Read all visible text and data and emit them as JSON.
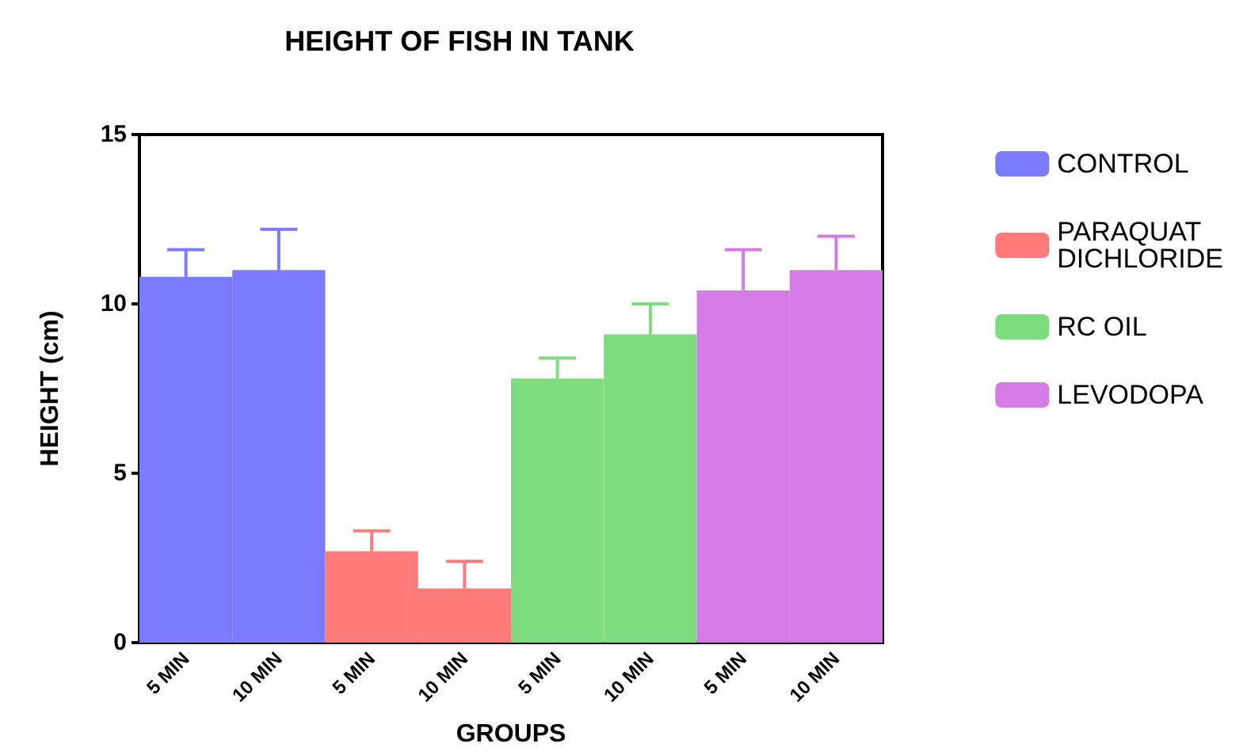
{
  "chart_data": {
    "type": "bar",
    "title": "HEIGHT OF FISH IN TANK",
    "xlabel": "GROUPS",
    "ylabel": "HEIGHT (cm)",
    "categories": [
      "5 MIN",
      "10 MIN",
      "5 MIN",
      "10 MIN",
      "5 MIN",
      "10 MIN",
      "5 MIN",
      "10 MIN"
    ],
    "series": [
      {
        "name": "CONTROL",
        "color": "#7b7bff",
        "values": [
          10.8,
          11.0,
          null,
          null,
          null,
          null,
          null,
          null
        ],
        "errors": [
          0.8,
          1.2,
          null,
          null,
          null,
          null,
          null,
          null
        ]
      },
      {
        "name": "PARAQUAT DICHLORIDE",
        "color": "#ff7b7b",
        "values": [
          null,
          null,
          2.7,
          1.6,
          null,
          null,
          null,
          null
        ],
        "errors": [
          null,
          null,
          0.6,
          0.8,
          null,
          null,
          null,
          null
        ]
      },
      {
        "name": "RC OIL",
        "color": "#7ddc7d",
        "values": [
          null,
          null,
          null,
          null,
          7.8,
          9.1,
          null,
          null
        ],
        "errors": [
          null,
          null,
          null,
          null,
          0.6,
          0.9,
          null,
          null
        ]
      },
      {
        "name": "LEVODOPA",
        "color": "#d47be8",
        "values": [
          null,
          null,
          null,
          null,
          null,
          null,
          10.4,
          11.0
        ],
        "errors": [
          null,
          null,
          null,
          null,
          null,
          null,
          1.2,
          1.0
        ]
      }
    ],
    "ylim": [
      0,
      15
    ],
    "yticks": [
      0,
      5,
      10,
      15
    ],
    "grid": false,
    "legend": "right"
  }
}
